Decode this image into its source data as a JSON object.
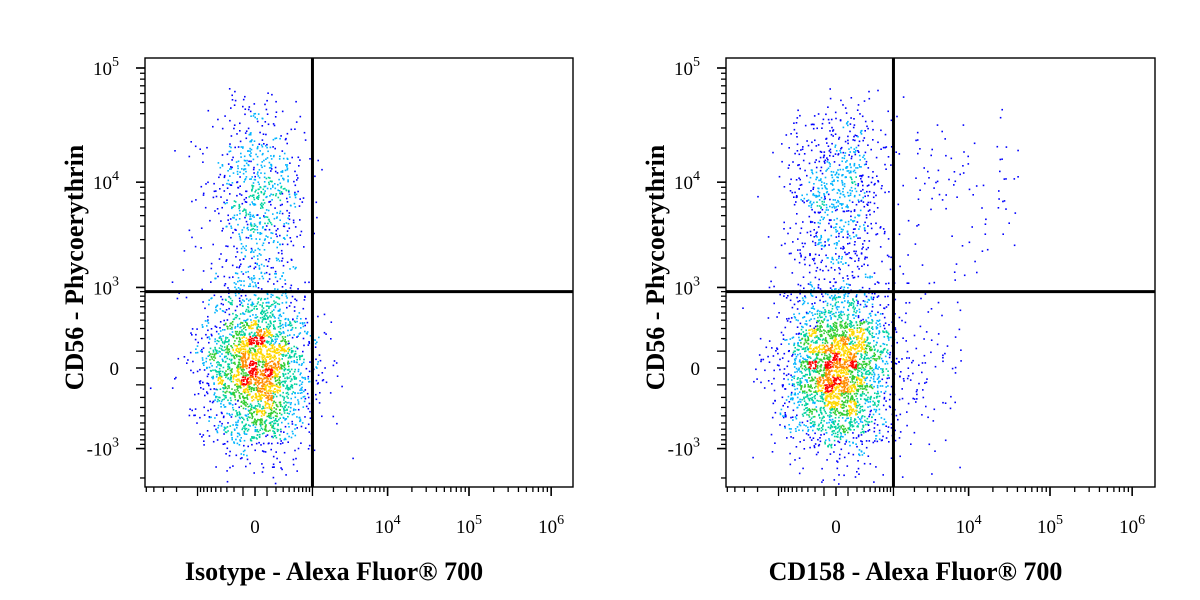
{
  "chart_data": [
    {
      "type": "scatter",
      "subtype": "flow-cytometry-density-dot-plot",
      "xlabel": "Isotype - Alexa Fluor® 700",
      "ylabel": "CD56 - Phycoerythrin",
      "x_scale": "biexponential",
      "y_scale": "biexponential",
      "x_ticks": [
        {
          "value": 0,
          "base": "0",
          "exp": ""
        },
        {
          "value": 10000,
          "base": "10",
          "exp": "4"
        },
        {
          "value": 100000,
          "base": "10",
          "exp": "5"
        },
        {
          "value": 1000000,
          "base": "10",
          "exp": "6"
        }
      ],
      "y_ticks": [
        {
          "value": -1000,
          "base": "-10",
          "exp": "3"
        },
        {
          "value": 0,
          "base": "0",
          "exp": ""
        },
        {
          "value": 1000,
          "base": "10",
          "exp": "3"
        },
        {
          "value": 10000,
          "base": "10",
          "exp": "4"
        },
        {
          "value": 100000,
          "base": "10",
          "exp": "5"
        }
      ],
      "quadrant_gate": {
        "x": 1000,
        "y": 900
      },
      "populations": [
        {
          "x_min": -800,
          "x_max": 900,
          "y_center": 0,
          "y_min": -1200,
          "y_max": 900,
          "density": "high",
          "count": 2600
        },
        {
          "x_min": -700,
          "x_max": 800,
          "y_center": 8000,
          "y_min": 900,
          "y_max": 45000,
          "density": "medium",
          "count": 750
        }
      ],
      "grid": false,
      "color_scale": [
        "#0000ff",
        "#00b4ff",
        "#00d2a0",
        "#32cd32",
        "#ffd700",
        "#ff8c00",
        "#ff0000"
      ]
    },
    {
      "type": "scatter",
      "subtype": "flow-cytometry-density-dot-plot",
      "xlabel": "CD158 - Alexa Fluor® 700",
      "ylabel": "CD56 - Phycoerythrin",
      "x_scale": "biexponential",
      "y_scale": "biexponential",
      "x_ticks": [
        {
          "value": 0,
          "base": "0",
          "exp": ""
        },
        {
          "value": 10000,
          "base": "10",
          "exp": "4"
        },
        {
          "value": 100000,
          "base": "10",
          "exp": "5"
        },
        {
          "value": 1000000,
          "base": "10",
          "exp": "6"
        }
      ],
      "y_ticks": [
        {
          "value": -1000,
          "base": "-10",
          "exp": "3"
        },
        {
          "value": 0,
          "base": "0",
          "exp": ""
        },
        {
          "value": 1000,
          "base": "10",
          "exp": "3"
        },
        {
          "value": 10000,
          "base": "10",
          "exp": "4"
        },
        {
          "value": 100000,
          "base": "10",
          "exp": "5"
        }
      ],
      "quadrant_gate": {
        "x": 1000,
        "y": 900
      },
      "populations": [
        {
          "x_min": -800,
          "x_max": 900,
          "y_center": 0,
          "y_min": -1200,
          "y_max": 900,
          "density": "high",
          "count": 2900
        },
        {
          "x_min": -700,
          "x_max": 800,
          "y_center": 8000,
          "y_min": 900,
          "y_max": 45000,
          "density": "medium",
          "count": 780
        },
        {
          "x_min": 2000,
          "x_max": 40000,
          "y_center": 10000,
          "y_min": 1500,
          "y_max": 20000,
          "density": "low",
          "count": 80
        },
        {
          "x_min": 1000,
          "x_max": 8000,
          "y_center": 0,
          "y_min": -900,
          "y_max": 900,
          "density": "low",
          "count": 90
        }
      ],
      "grid": false,
      "color_scale": [
        "#0000ff",
        "#00b4ff",
        "#00d2a0",
        "#32cd32",
        "#ffd700",
        "#ff8c00",
        "#ff0000"
      ]
    }
  ]
}
